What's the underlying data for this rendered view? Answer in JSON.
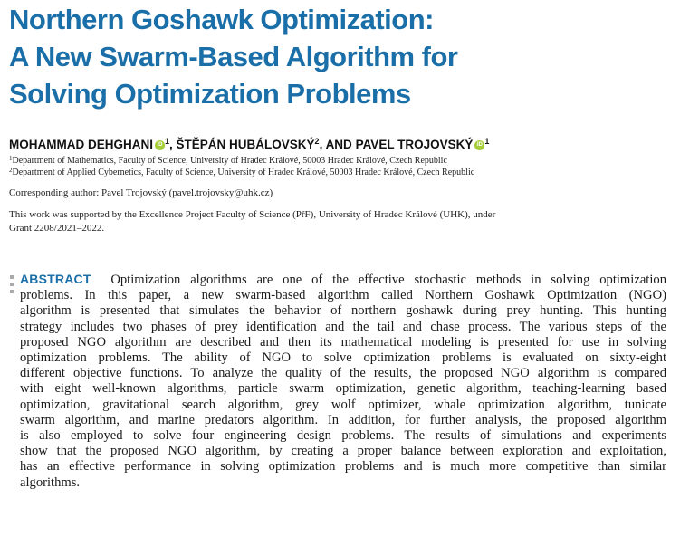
{
  "title": {
    "lines": [
      "Northern Goshawk Optimization:",
      "A New Swarm-Based Algorithm for",
      "Solving Optimization Problems"
    ]
  },
  "authors": {
    "a1_name": "MOHAMMAD DEHGHANI",
    "a1_sup": "1",
    "sep1": ", ",
    "a2_name": "ŠTĚPÁN HUBÁLOVSKÝ",
    "a2_sup": "2",
    "sep2": ", AND ",
    "a3_name": "PAVEL TROJOVSKÝ",
    "a3_sup": "1",
    "orcid_glyph": "iD"
  },
  "affiliations": [
    {
      "sup": "1",
      "text": "Department of Mathematics, Faculty of Science, University of Hradec Králové, 50003 Hradec Králové, Czech Republic"
    },
    {
      "sup": "2",
      "text": "Department of Applied Cybernetics, Faculty of Science, University of Hradec Králové, 50003 Hradec Králové, Czech Republic"
    }
  ],
  "corresponding": "Corresponding author: Pavel Trojovský (pavel.trojovsky@uhk.cz)",
  "funding": {
    "lines": [
      "This work was supported by the Excellence Project Faculty of Science (PřF), University of Hradec Králové (UHK), under",
      "Grant 2208/2021–2022."
    ]
  },
  "abstract": {
    "label": "ABSTRACT",
    "lines": [
      "Optimization algorithms are one of the effective stochastic methods in solving optimization",
      "problems. In this paper, a new swarm-based algorithm called Northern Goshawk Optimization (NGO)",
      "algorithm is presented that simulates the behavior of northern goshawk during prey hunting. This hunting",
      "strategy includes two phases of prey identification and the tail and chase process. The various steps of the",
      "proposed NGO algorithm are described and then its mathematical modeling is presented for use in solving",
      "optimization problems. The ability of NGO to solve optimization problems is evaluated on sixty-eight",
      "different objective functions. To analyze the quality of the results, the proposed NGO algorithm is compared",
      "with eight well-known algorithms, particle swarm optimization, genetic algorithm, teaching-learning based",
      "optimization, gravitational search algorithm, grey wolf optimizer, whale optimization algorithm, tunicate",
      "swarm algorithm, and marine predators algorithm. In addition, for further analysis, the proposed algorithm",
      "is also employed to solve four engineering design problems. The results of simulations and experiments",
      "show that the proposed NGO algorithm, by creating a proper balance between exploration and exploitation,",
      "has an effective performance in solving optimization problems and is much more competitive than similar",
      "algorithms."
    ]
  },
  "colors": {
    "title": "#1b6fa8",
    "abstract_label": "#1b6fa8",
    "orcid": "#a6ce39",
    "body_text": "#1a1a1a"
  }
}
